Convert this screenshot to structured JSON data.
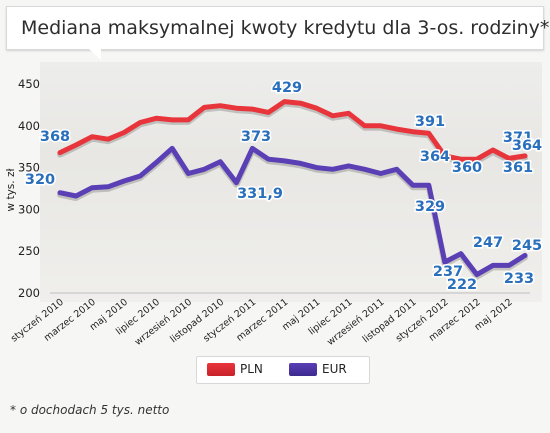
{
  "title": "Mediana maksymalnej kwoty kredytu dla 3-os. rodziny*",
  "footnote": "* o dochodach 5 tys. netto",
  "colors": {
    "pln": "#e8353b",
    "eur": "#5a3fb5",
    "label": "#2a6fbb"
  },
  "chart_data": {
    "type": "line",
    "title": "Mediana maksymalnej kwoty kredytu dla 3-os. rodziny*",
    "ylabel": "w tys. zł",
    "ylim": [
      200,
      450
    ],
    "yticks": [
      200,
      250,
      300,
      350,
      400,
      450
    ],
    "x": [
      "styczeń 2010",
      "luty 2010",
      "marzec 2010",
      "kwiecień 2010",
      "maj 2010",
      "czerwiec 2010",
      "lipiec 2010",
      "sierpień 2010",
      "wrzesień 2010",
      "październik 2010",
      "listopad 2010",
      "grudzień 2010",
      "styczeń 2011",
      "luty 2011",
      "marzec 2011",
      "kwiecień 2011",
      "maj 2011",
      "czerwiec 2011",
      "lipiec 2011",
      "sierpień 2011",
      "wrzesień 2011",
      "październik 2011",
      "listopad 2011",
      "grudzień 2011",
      "styczeń 2012",
      "luty 2012",
      "marzec 2012",
      "kwiecień 2012",
      "maj 2012",
      "czerwiec 2012"
    ],
    "xtick_labels": [
      "styczeń 2010",
      "marzec 2010",
      "maj 2010",
      "lipiec 2010",
      "wrzesień 2010",
      "listopad 2010",
      "styczeń 2011",
      "marzec 2011",
      "maj 2011",
      "lipiec 2011",
      "wrzesień 2011",
      "listopad 2011",
      "styczeń 2012",
      "marzec 2012",
      "maj 2012"
    ],
    "series": [
      {
        "name": "PLN",
        "values": [
          368,
          377,
          387,
          384,
          392,
          404,
          409,
          407,
          407,
          422,
          424,
          421,
          420,
          416,
          429,
          427,
          421,
          412,
          415,
          400,
          400,
          396,
          393,
          391,
          364,
          360,
          360,
          371,
          361,
          364
        ]
      },
      {
        "name": "EUR",
        "values": [
          320,
          316,
          326,
          327,
          334,
          340,
          356,
          373,
          343,
          348,
          357,
          331.9,
          373,
          360,
          358,
          355,
          350,
          348,
          352,
          348,
          343,
          348,
          329,
          329,
          237,
          247,
          222,
          233,
          233,
          245
        ]
      }
    ],
    "annotations": [
      {
        "series": "PLN",
        "label": "368"
      },
      {
        "series": "PLN",
        "label": "429"
      },
      {
        "series": "PLN",
        "label": "391"
      },
      {
        "series": "PLN",
        "label": "364"
      },
      {
        "series": "PLN",
        "label": "360"
      },
      {
        "series": "PLN",
        "label": "371"
      },
      {
        "series": "PLN",
        "label": "361"
      },
      {
        "series": "PLN",
        "label": "364"
      },
      {
        "series": "EUR",
        "label": "320"
      },
      {
        "series": "EUR",
        "label": "373"
      },
      {
        "series": "EUR",
        "label": "331,9"
      },
      {
        "series": "EUR",
        "label": "329"
      },
      {
        "series": "EUR",
        "label": "237"
      },
      {
        "series": "EUR",
        "label": "247"
      },
      {
        "series": "EUR",
        "label": "222"
      },
      {
        "series": "EUR",
        "label": "233"
      },
      {
        "series": "EUR",
        "label": "245"
      }
    ],
    "legend": {
      "position": "bottom-center",
      "entries": [
        "PLN",
        "EUR"
      ]
    },
    "grid": false
  }
}
